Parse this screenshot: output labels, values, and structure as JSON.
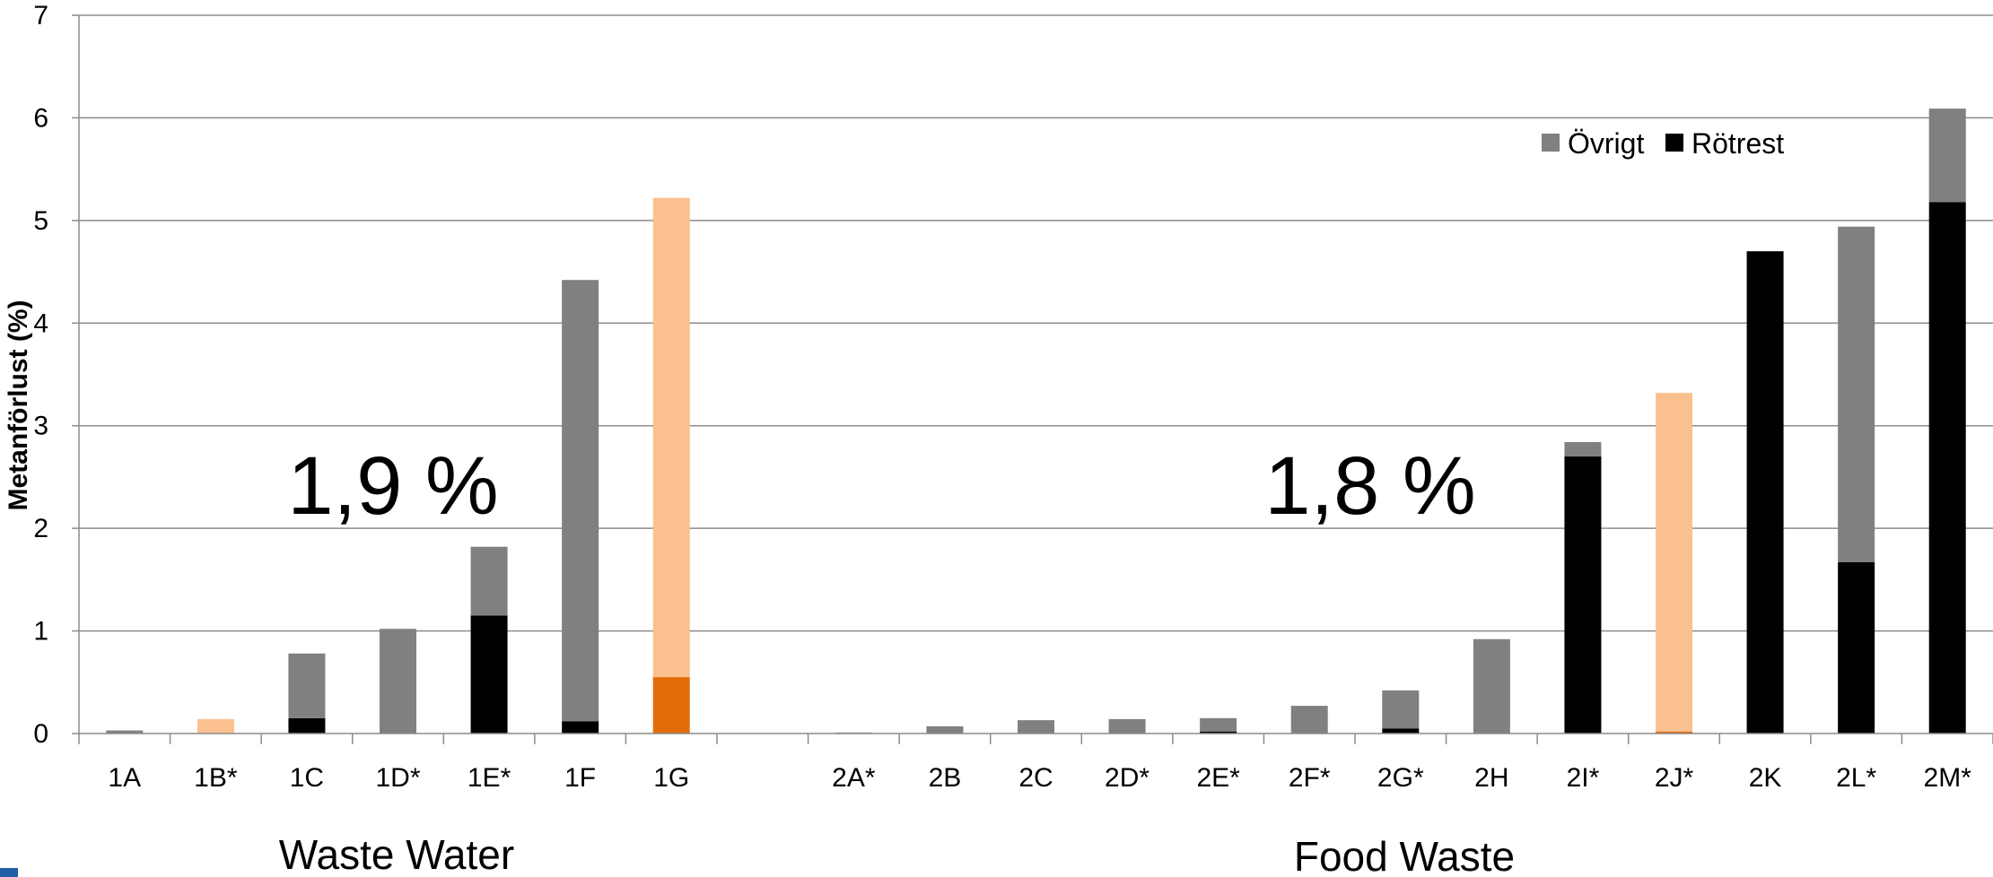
{
  "chart_data": {
    "type": "bar",
    "stacked": true,
    "ylabel": "Metanförlust (%)",
    "ylim": [
      0,
      7
    ],
    "yticks": [
      0,
      1,
      2,
      3,
      4,
      5,
      6,
      7
    ],
    "grid": true,
    "legend_position": "top-right",
    "categories": [
      "1A",
      "1B*",
      "1C",
      "1D*",
      "1E*",
      "1F",
      "1G",
      "",
      "2A*",
      "2B",
      "2C",
      "2D*",
      "2E*",
      "2F*",
      "2G*",
      "2H",
      "2I*",
      "2J*",
      "2K",
      "2L*",
      "2M*"
    ],
    "series": [
      {
        "name": "Rötrest",
        "color": "#000000",
        "values": [
          0,
          0,
          0.15,
          0,
          1.15,
          0.12,
          0.55,
          0,
          0,
          0,
          0,
          0,
          0.02,
          0,
          0.05,
          0,
          2.7,
          0.02,
          4.7,
          1.67,
          5.18
        ]
      },
      {
        "name": "Övrigt",
        "color": "#808080",
        "values": [
          0.03,
          0.14,
          0.63,
          1.02,
          0.67,
          4.3,
          4.67,
          0,
          0.01,
          0.07,
          0.13,
          0.14,
          0.13,
          0.27,
          0.37,
          0.92,
          0.14,
          3.3,
          0,
          3.27,
          0.91
        ]
      }
    ],
    "highlight": {
      "categories": [
        "1B*",
        "1G",
        "2J*"
      ],
      "colors": {
        "Rötrest": "#E36C0A",
        "Övrigt": "#FAC090"
      }
    },
    "groups": [
      {
        "label": "Waste Water",
        "annotation": "1,9 %"
      },
      {
        "label": "Food Waste",
        "annotation": "1,8 %"
      }
    ]
  }
}
